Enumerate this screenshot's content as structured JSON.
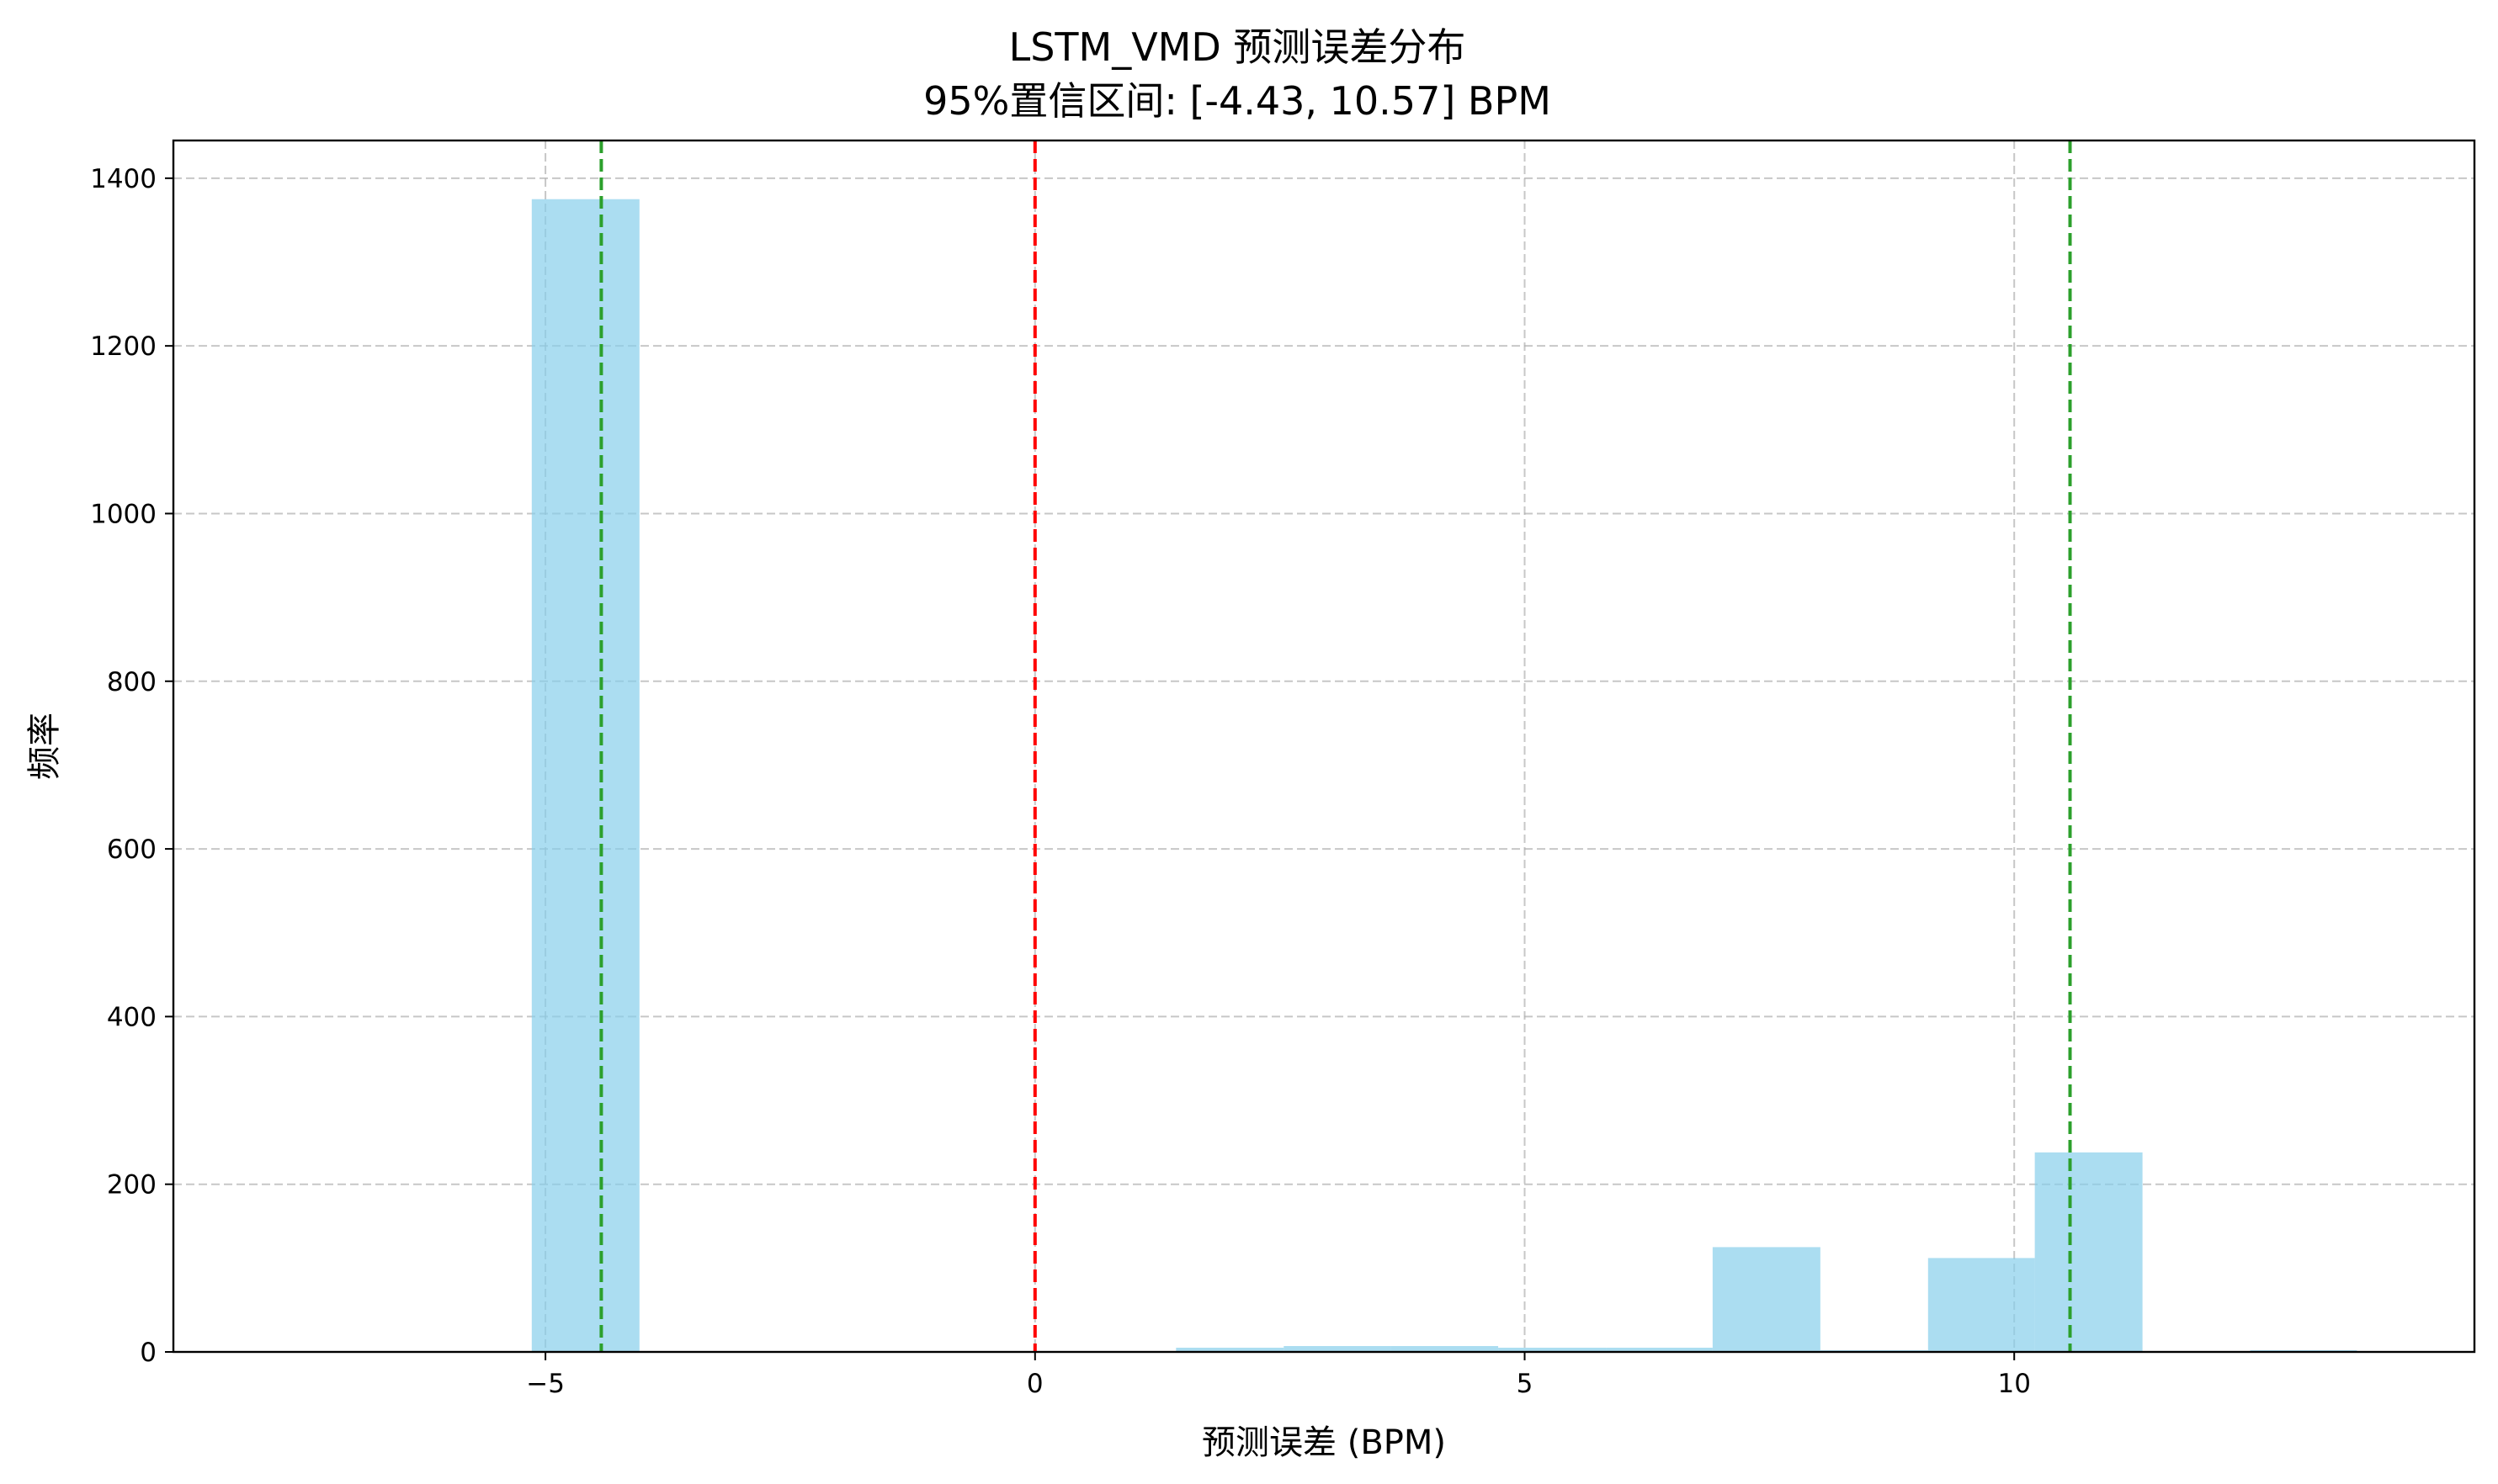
{
  "chart_data": {
    "type": "bar",
    "title": "LSTM_VMD 预测误差分布",
    "subtitle": "95%置信区间: [-4.43, 10.57] BPM",
    "xlabel": "预测误差 (BPM)",
    "ylabel": "频率",
    "xlim": [
      -8.8,
      14.7
    ],
    "ylim": [
      0,
      1445
    ],
    "x_ticks": [
      -5,
      0,
      5,
      10
    ],
    "x_tick_labels": [
      "−5",
      "0",
      "5",
      "10"
    ],
    "y_ticks": [
      0,
      200,
      400,
      600,
      800,
      1000,
      1200,
      1400
    ],
    "y_tick_labels": [
      "0",
      "200",
      "400",
      "600",
      "800",
      "1000",
      "1200",
      "1400"
    ],
    "grid": true,
    "bars": [
      {
        "x0": -8.43,
        "x1": -7.33,
        "value": 1
      },
      {
        "x0": -7.33,
        "x1": -6.24,
        "value": 0
      },
      {
        "x0": -6.24,
        "x1": -5.14,
        "value": 0
      },
      {
        "x0": -5.14,
        "x1": -4.04,
        "value": 1375
      },
      {
        "x0": -4.04,
        "x1": -2.95,
        "value": 0
      },
      {
        "x0": -2.95,
        "x1": -1.85,
        "value": 0
      },
      {
        "x0": -1.85,
        "x1": -0.75,
        "value": 0
      },
      {
        "x0": -0.75,
        "x1": 0.34,
        "value": 0
      },
      {
        "x0": 0.34,
        "x1": 1.44,
        "value": 0
      },
      {
        "x0": 1.44,
        "x1": 2.54,
        "value": 5
      },
      {
        "x0": 2.54,
        "x1": 3.63,
        "value": 7
      },
      {
        "x0": 3.63,
        "x1": 4.73,
        "value": 7
      },
      {
        "x0": 4.73,
        "x1": 5.83,
        "value": 5
      },
      {
        "x0": 5.83,
        "x1": 6.92,
        "value": 5
      },
      {
        "x0": 6.92,
        "x1": 8.02,
        "value": 125
      },
      {
        "x0": 8.02,
        "x1": 9.12,
        "value": 2
      },
      {
        "x0": 9.12,
        "x1": 10.21,
        "value": 112
      },
      {
        "x0": 10.21,
        "x1": 11.31,
        "value": 238
      },
      {
        "x0": 11.31,
        "x1": 12.41,
        "value": 0
      },
      {
        "x0": 12.41,
        "x1": 13.5,
        "value": 2
      }
    ],
    "bar_color": "#87ceeb",
    "bar_opacity": 0.7,
    "reference_lines": [
      {
        "x": 0,
        "color": "#ff0000",
        "style": "dashed"
      },
      {
        "x": -4.43,
        "color": "#2ca02c",
        "style": "dashed"
      },
      {
        "x": 10.57,
        "color": "#2ca02c",
        "style": "dashed"
      }
    ]
  }
}
